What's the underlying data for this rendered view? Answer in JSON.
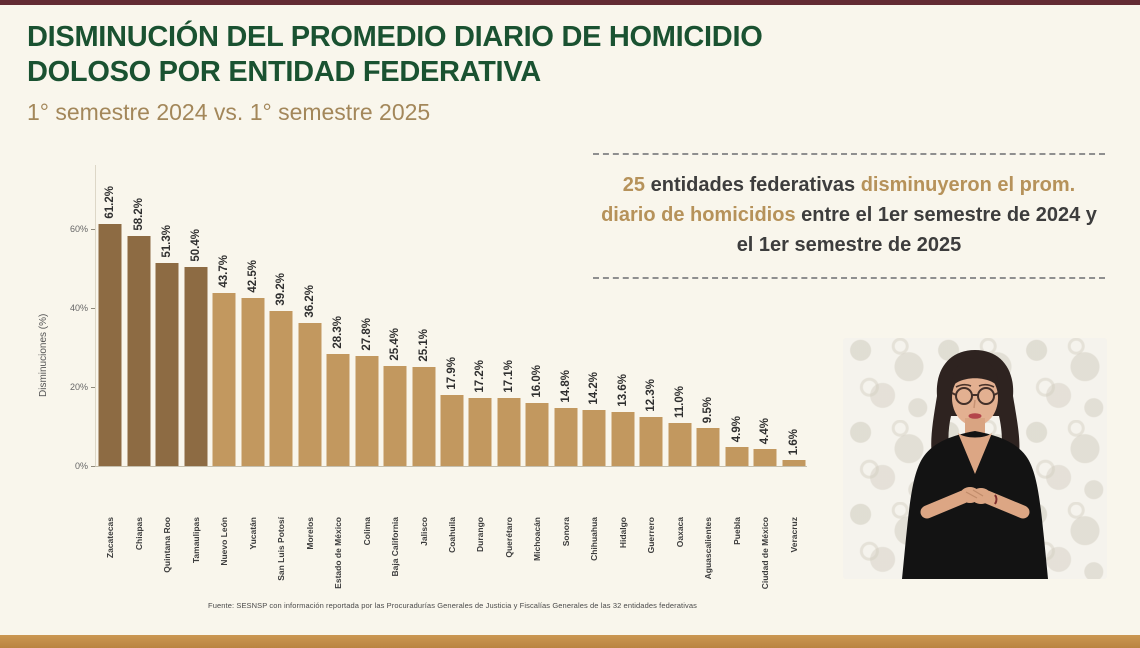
{
  "slide": {
    "title": "DISMINUCIÓN DEL PROMEDIO DIARIO DE HOMICIDIO\nDOLOSO POR ENTIDAD FEDERATIVA",
    "subtitle": "1° semestre 2024 vs. 1° semestre 2025",
    "source_note": "Fuente: SESNSP con información reportada por las Procuradurías Generales de Justicia y Fiscalías Generales de las 32 entidades federativas"
  },
  "callout": {
    "number": "25",
    "segment_1": " entidades federativas ",
    "highlight": "disminuyeron el prom. diario de homicidios",
    "segment_2": " entre el 1er semestre de 2024 y el 1er semestre de 2025"
  },
  "chart_data": {
    "type": "bar",
    "title": "",
    "xlabel": "",
    "ylabel": "Disminuciones (%)",
    "ylim": [
      0,
      65
    ],
    "grid": false,
    "yticks": [
      "0%",
      "20%",
      "40%",
      "60%"
    ],
    "ytick_values": [
      0,
      20,
      40,
      60
    ],
    "categories": [
      "Zacatecas",
      "Chiapas",
      "Quintana Roo",
      "Tamaulipas",
      "Nuevo León",
      "Yucatán",
      "San Luis Potosí",
      "Morelos",
      "Estado de México",
      "Colima",
      "Baja California",
      "Jalisco",
      "Coahuila",
      "Durango",
      "Querétaro",
      "Michoacán",
      "Sonora",
      "Chihuahua",
      "Hidalgo",
      "Guerrero",
      "Oaxaca",
      "Aguascalientes",
      "Puebla",
      "Ciudad de México",
      "Veracruz"
    ],
    "values": [
      61.2,
      58.2,
      51.3,
      50.4,
      43.7,
      42.5,
      39.2,
      36.2,
      28.3,
      27.8,
      25.4,
      25.1,
      17.9,
      17.2,
      17.1,
      16.0,
      14.8,
      14.2,
      13.6,
      12.3,
      11.0,
      9.5,
      4.9,
      4.4,
      1.6
    ],
    "value_labels": [
      "61.2%",
      "58.2%",
      "51.3%",
      "50.4%",
      "43.7%",
      "42.5%",
      "39.2%",
      "36.2%",
      "28.3%",
      "27.8%",
      "25.4%",
      "25.1%",
      "17.9%",
      "17.2%",
      "17.1%",
      "16.0%",
      "14.8%",
      "14.2%",
      "13.6%",
      "12.3%",
      "11.0%",
      "9.5%",
      "4.9%",
      "4.4%",
      "1.6%"
    ],
    "highlight_count": 4,
    "bar_color_highlight": "#8d6b43",
    "bar_color_normal": "#c2985f"
  },
  "colors": {
    "title_green": "#1a5231",
    "accent_gold": "#b6925a",
    "top_bar_maroon": "#632b33",
    "bottom_bar_gold": "#cb9752",
    "background_cream": "#f9f6ec"
  }
}
